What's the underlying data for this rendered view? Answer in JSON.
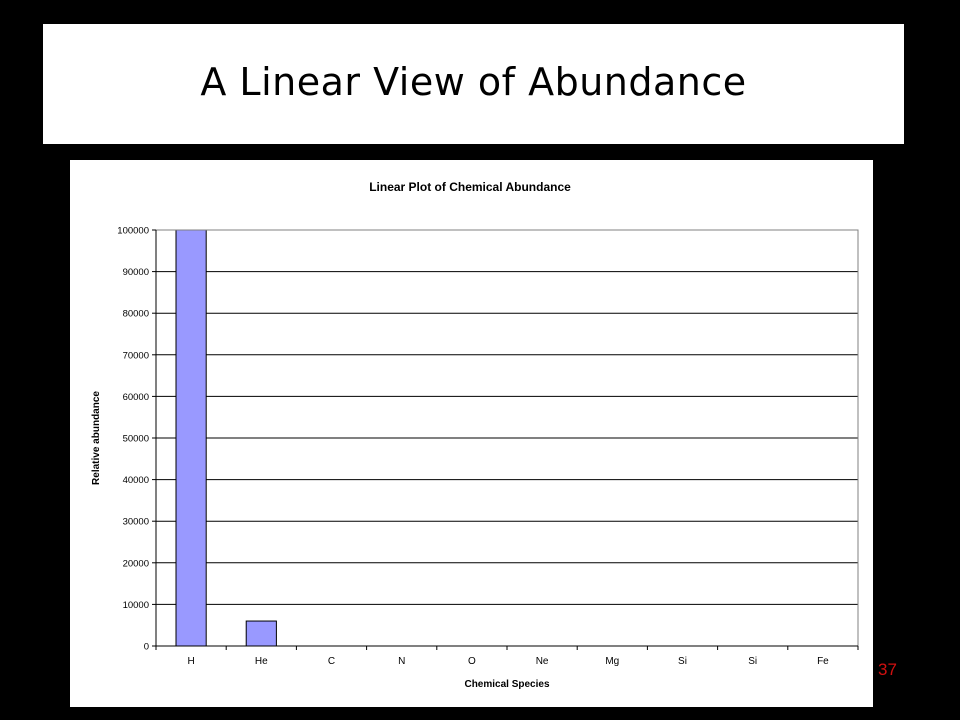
{
  "slide": {
    "title": "A Linear View of Abundance",
    "page_number": "37"
  },
  "colors": {
    "background": "#000000",
    "bar_fill": "#9999ff",
    "slide_number": "#d01010"
  },
  "chart_data": {
    "type": "bar",
    "title": "Linear Plot of Chemical Abundance",
    "xlabel": "Chemical Species",
    "ylabel": "Relative abundance",
    "categories": [
      "H",
      "He",
      "C",
      "N",
      "O",
      "Ne",
      "Mg",
      "Si",
      "Si",
      "Fe"
    ],
    "values": [
      100000,
      6000,
      37,
      11,
      69,
      11,
      3,
      3,
      3,
      3
    ],
    "ylim": [
      0,
      100000
    ],
    "yticks": [
      0,
      10000,
      20000,
      30000,
      40000,
      50000,
      60000,
      70000,
      80000,
      90000,
      100000
    ],
    "grid": true,
    "legend": "none"
  }
}
